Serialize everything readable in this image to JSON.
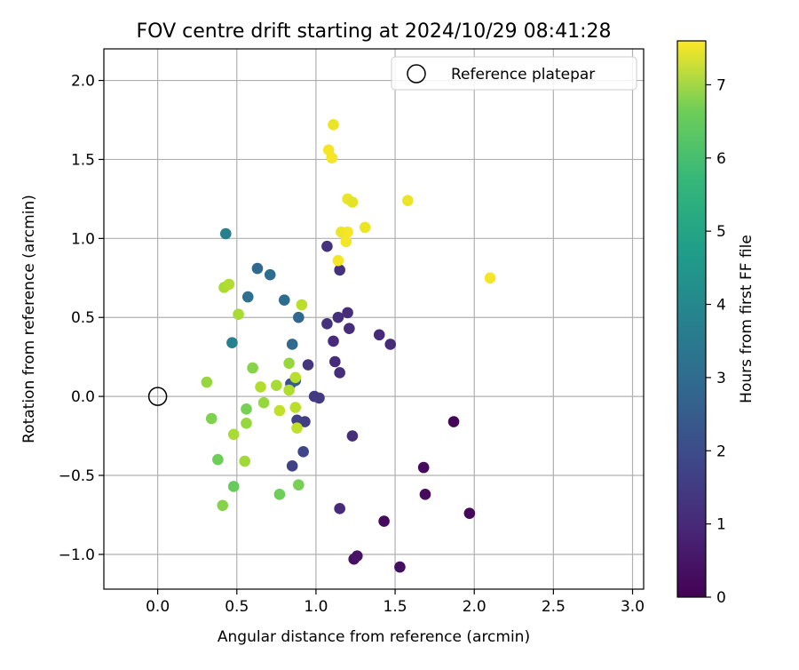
{
  "chart_data": {
    "type": "scatter",
    "title": "FOV centre drift starting at 2024/10/29 08:41:28",
    "xlabel": "Angular distance from reference (arcmin)",
    "ylabel": "Rotation from reference (arcmin)",
    "xlim": [
      -0.34,
      3.07
    ],
    "ylim": [
      -1.22,
      2.2
    ],
    "xticks": [
      0.0,
      0.5,
      1.0,
      1.5,
      2.0,
      2.5,
      3.0
    ],
    "yticks": [
      -1.0,
      -0.5,
      0.0,
      0.5,
      1.0,
      1.5,
      2.0
    ],
    "xtick_labels": [
      "0.0",
      "0.5",
      "1.0",
      "1.5",
      "2.0",
      "2.5",
      "3.0"
    ],
    "ytick_labels": [
      "−1.0",
      "−0.5",
      "0.0",
      "0.5",
      "1.0",
      "1.5",
      "2.0"
    ],
    "grid": true,
    "legend": {
      "position": "top-right",
      "entries": [
        "Reference platepar"
      ]
    },
    "reference_point": {
      "x": 0.0,
      "y": 0.0
    },
    "colorbar": {
      "label": "Hours from first FF file",
      "colormap": "viridis",
      "range": [
        0,
        7.6
      ],
      "ticks": [
        0,
        1,
        2,
        3,
        4,
        5,
        6,
        7
      ],
      "tick_labels": [
        "0",
        "1",
        "2",
        "3",
        "4",
        "5",
        "6",
        "7"
      ]
    },
    "series": [
      {
        "points": [
          {
            "x": 1.87,
            "y": -0.16,
            "hours": 0.1
          },
          {
            "x": 1.68,
            "y": -0.45,
            "hours": 0.2
          },
          {
            "x": 1.69,
            "y": -0.62,
            "hours": 0.2
          },
          {
            "x": 1.97,
            "y": -0.74,
            "hours": 0.15
          },
          {
            "x": 1.43,
            "y": -0.79,
            "hours": 0.2
          },
          {
            "x": 1.53,
            "y": -1.08,
            "hours": 0.3
          },
          {
            "x": 1.24,
            "y": -1.03,
            "hours": 0.35
          },
          {
            "x": 1.26,
            "y": -1.01,
            "hours": 0.4
          },
          {
            "x": 1.15,
            "y": -0.71,
            "hours": 0.9
          },
          {
            "x": 1.23,
            "y": -0.25,
            "hours": 1.0
          },
          {
            "x": 1.11,
            "y": 0.35,
            "hours": 0.9
          },
          {
            "x": 1.12,
            "y": 0.22,
            "hours": 0.95
          },
          {
            "x": 1.15,
            "y": 0.15,
            "hours": 1.0
          },
          {
            "x": 1.07,
            "y": 0.46,
            "hours": 1.1
          },
          {
            "x": 1.14,
            "y": 0.5,
            "hours": 1.05
          },
          {
            "x": 1.2,
            "y": 0.53,
            "hours": 1.0
          },
          {
            "x": 1.21,
            "y": 0.43,
            "hours": 1.0
          },
          {
            "x": 1.4,
            "y": 0.39,
            "hours": 0.9
          },
          {
            "x": 1.47,
            "y": 0.33,
            "hours": 0.95
          },
          {
            "x": 1.07,
            "y": 0.95,
            "hours": 1.1
          },
          {
            "x": 1.15,
            "y": 0.8,
            "hours": 1.1
          },
          {
            "x": 0.95,
            "y": 0.2,
            "hours": 1.2
          },
          {
            "x": 0.99,
            "y": 0.0,
            "hours": 1.3
          },
          {
            "x": 1.02,
            "y": -0.01,
            "hours": 1.3
          },
          {
            "x": 0.93,
            "y": -0.16,
            "hours": 1.4
          },
          {
            "x": 0.88,
            "y": -0.15,
            "hours": 1.5
          },
          {
            "x": 0.92,
            "y": -0.35,
            "hours": 1.6
          },
          {
            "x": 0.85,
            "y": -0.44,
            "hours": 1.5
          },
          {
            "x": 0.84,
            "y": 0.08,
            "hours": 1.9
          },
          {
            "x": 0.87,
            "y": 0.1,
            "hours": 2.3
          },
          {
            "x": 0.89,
            "y": 0.5,
            "hours": 2.5
          },
          {
            "x": 0.85,
            "y": 0.33,
            "hours": 2.6
          },
          {
            "x": 0.8,
            "y": 0.61,
            "hours": 2.7
          },
          {
            "x": 0.71,
            "y": 0.77,
            "hours": 2.7
          },
          {
            "x": 0.63,
            "y": 0.81,
            "hours": 2.6
          },
          {
            "x": 0.57,
            "y": 0.63,
            "hours": 2.8
          },
          {
            "x": 0.43,
            "y": 1.03,
            "hours": 3.3
          },
          {
            "x": 0.47,
            "y": 0.34,
            "hours": 3.3
          },
          {
            "x": 0.31,
            "y": 0.09,
            "hours": 6.4
          },
          {
            "x": 0.34,
            "y": -0.14,
            "hours": 6.1
          },
          {
            "x": 0.38,
            "y": -0.4,
            "hours": 5.9
          },
          {
            "x": 0.41,
            "y": -0.69,
            "hours": 6.2
          },
          {
            "x": 0.48,
            "y": -0.57,
            "hours": 5.8
          },
          {
            "x": 0.48,
            "y": -0.24,
            "hours": 6.6
          },
          {
            "x": 0.55,
            "y": -0.41,
            "hours": 6.5
          },
          {
            "x": 0.56,
            "y": -0.08,
            "hours": 6.0
          },
          {
            "x": 0.56,
            "y": -0.17,
            "hours": 6.4
          },
          {
            "x": 0.6,
            "y": 0.18,
            "hours": 6.2
          },
          {
            "x": 0.65,
            "y": 0.06,
            "hours": 6.7
          },
          {
            "x": 0.67,
            "y": -0.04,
            "hours": 6.4
          },
          {
            "x": 0.75,
            "y": 0.07,
            "hours": 6.6
          },
          {
            "x": 0.77,
            "y": -0.09,
            "hours": 6.9
          },
          {
            "x": 0.77,
            "y": -0.62,
            "hours": 5.9
          },
          {
            "x": 0.83,
            "y": 0.21,
            "hours": 6.4
          },
          {
            "x": 0.83,
            "y": 0.04,
            "hours": 6.7
          },
          {
            "x": 0.87,
            "y": 0.12,
            "hours": 6.8
          },
          {
            "x": 0.87,
            "y": -0.07,
            "hours": 6.8
          },
          {
            "x": 0.88,
            "y": -0.2,
            "hours": 6.9
          },
          {
            "x": 0.89,
            "y": -0.56,
            "hours": 6.0
          },
          {
            "x": 0.91,
            "y": 0.58,
            "hours": 6.8
          },
          {
            "x": 0.42,
            "y": 0.69,
            "hours": 6.6
          },
          {
            "x": 0.45,
            "y": 0.71,
            "hours": 6.7
          },
          {
            "x": 0.51,
            "y": 0.52,
            "hours": 6.6
          },
          {
            "x": 1.11,
            "y": 1.72,
            "hours": 7.4
          },
          {
            "x": 1.08,
            "y": 1.56,
            "hours": 7.5
          },
          {
            "x": 1.1,
            "y": 1.51,
            "hours": 7.5
          },
          {
            "x": 1.2,
            "y": 1.25,
            "hours": 7.4
          },
          {
            "x": 1.23,
            "y": 1.23,
            "hours": 7.3
          },
          {
            "x": 1.16,
            "y": 1.04,
            "hours": 7.4
          },
          {
            "x": 1.2,
            "y": 1.04,
            "hours": 7.5
          },
          {
            "x": 1.19,
            "y": 0.98,
            "hours": 7.5
          },
          {
            "x": 1.14,
            "y": 0.86,
            "hours": 7.5
          },
          {
            "x": 1.31,
            "y": 1.07,
            "hours": 7.4
          },
          {
            "x": 1.58,
            "y": 1.24,
            "hours": 7.4
          },
          {
            "x": 2.1,
            "y": 0.75,
            "hours": 7.5
          }
        ]
      }
    ]
  }
}
